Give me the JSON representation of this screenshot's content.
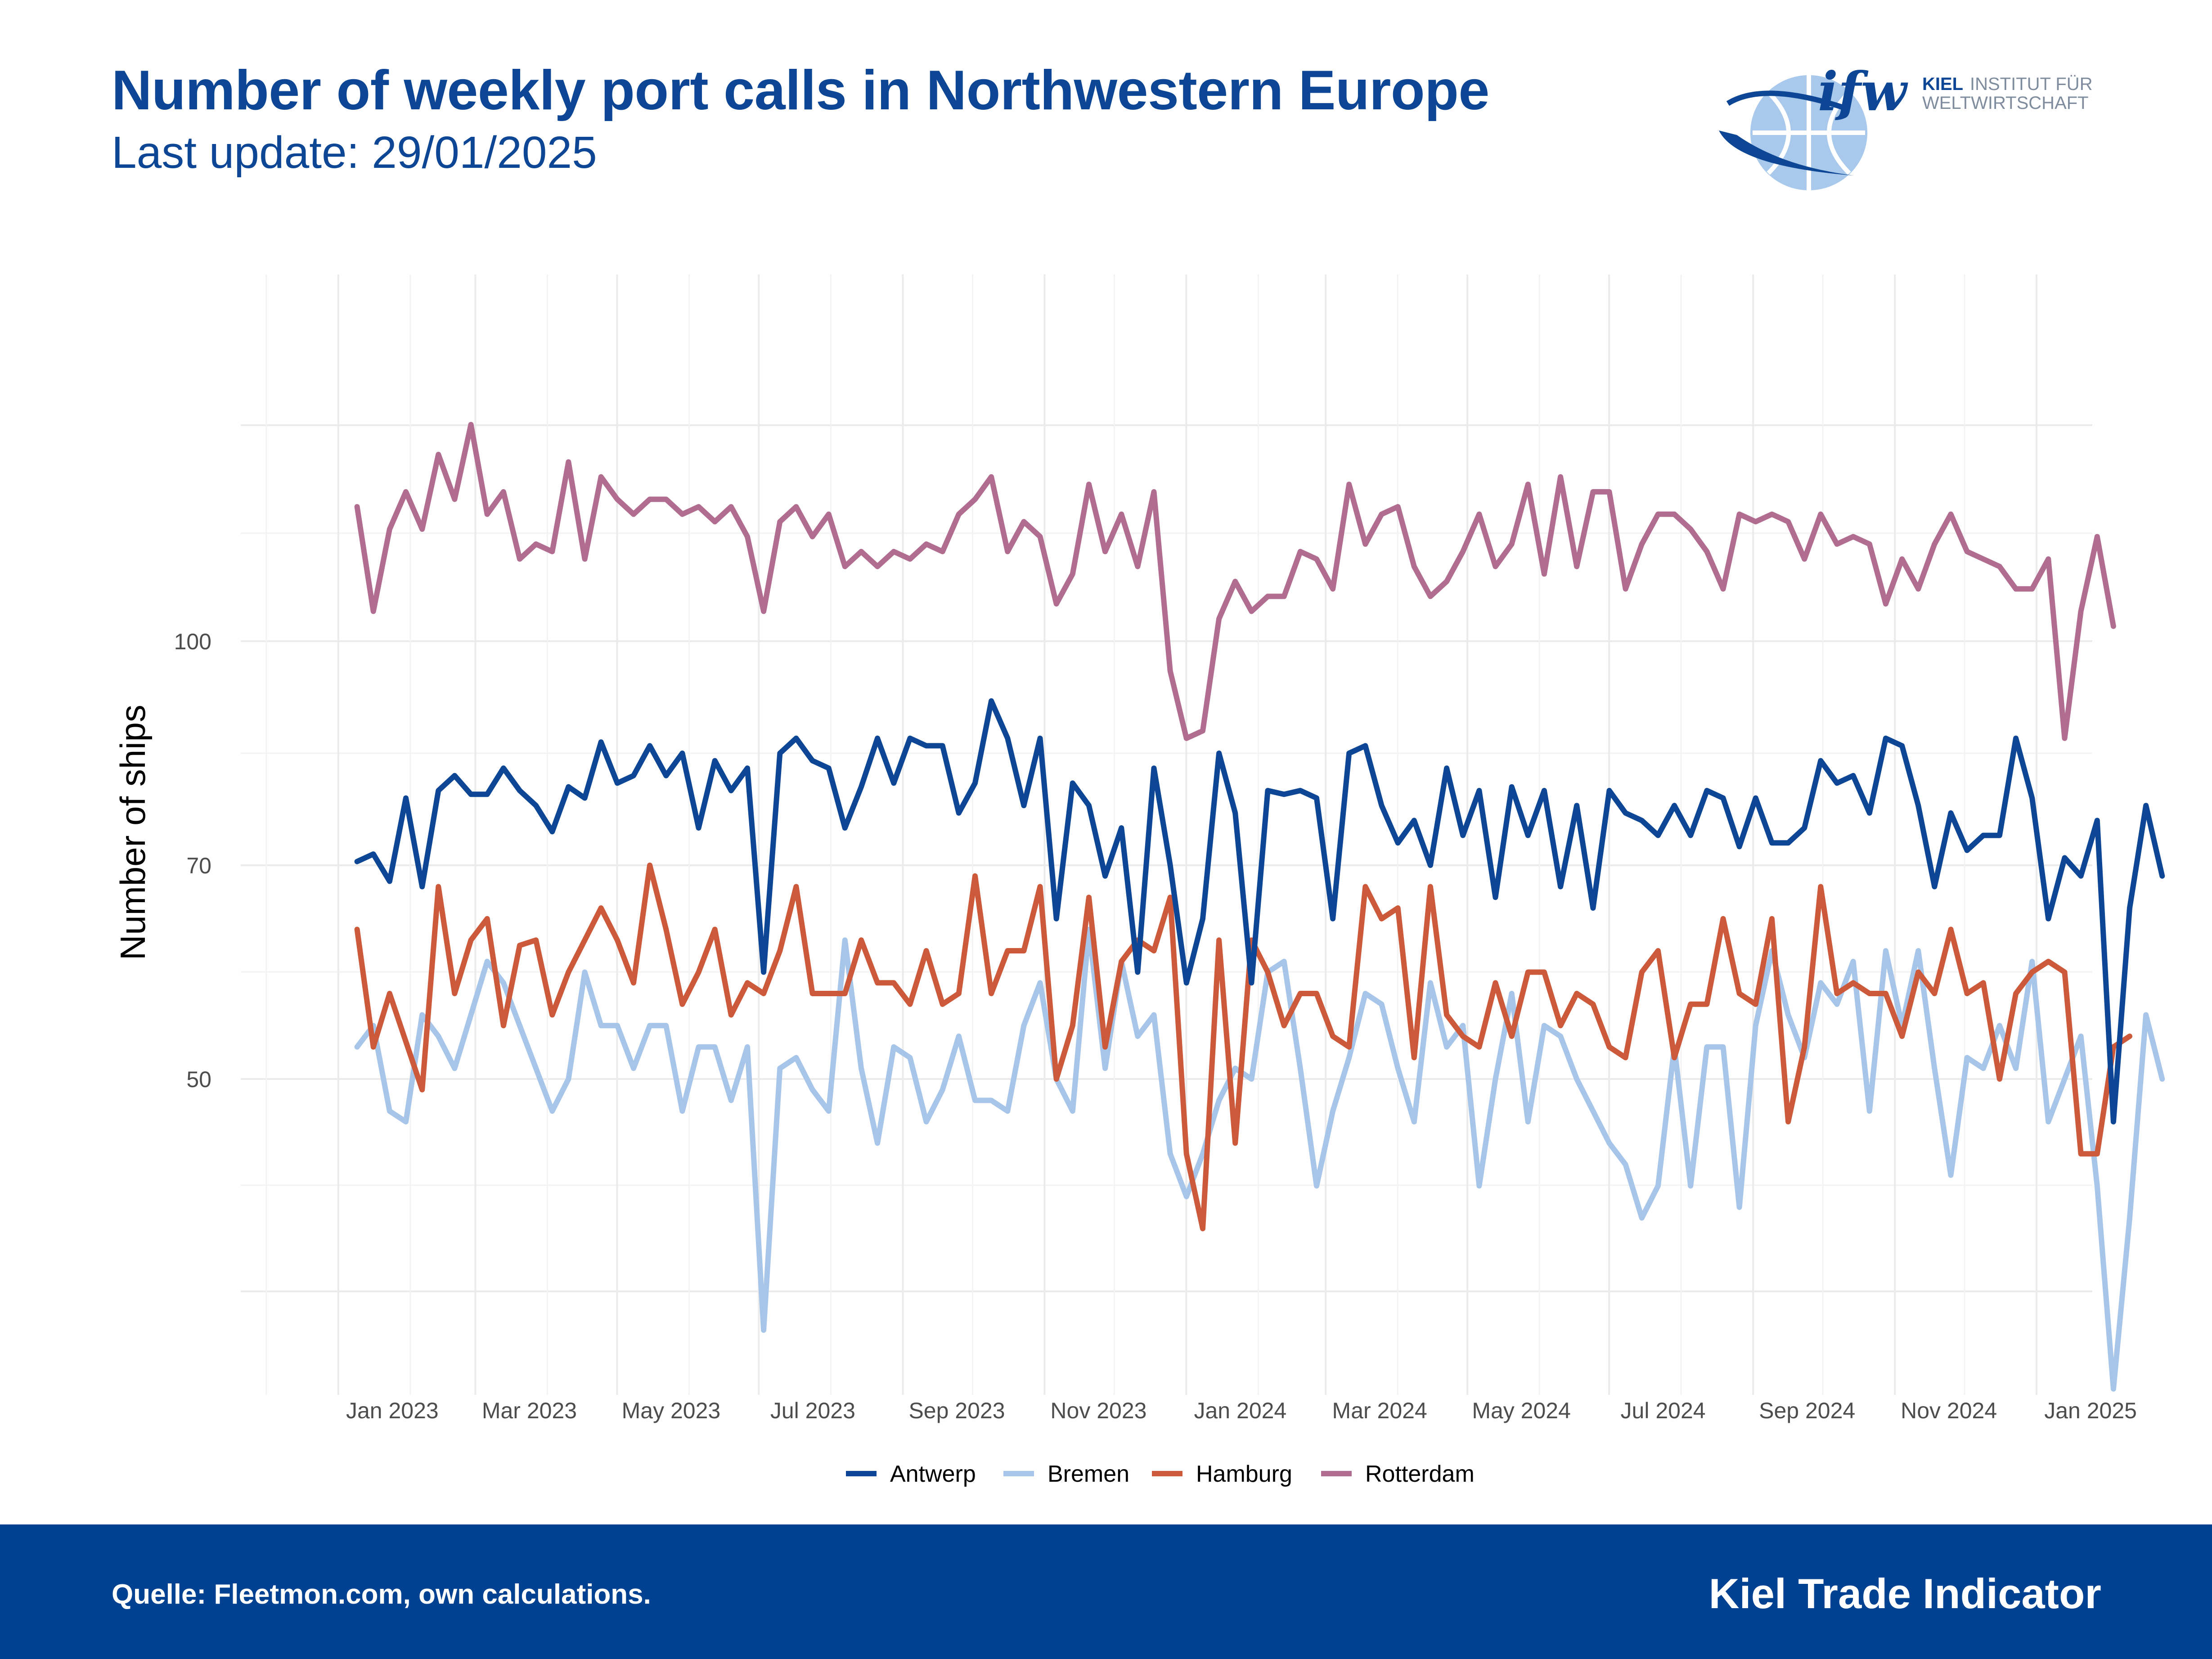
{
  "header": {
    "title": "Number of weekly port calls in Northwestern Europe",
    "subtitle": "Last update: 29/01/2025"
  },
  "logo": {
    "mark": "ifw",
    "line1_bold": "KIEL",
    "line1_rest": "INSTITUT FÜR",
    "line2": "WELTWIRTSCHAFT"
  },
  "footer": {
    "source": "Quelle: Fleetmon.com, own calculations.",
    "brand": "Kiel Trade Indicator",
    "background": "#004191"
  },
  "chart_data": {
    "type": "line",
    "ylabel": "Number of ships",
    "xlabel": "",
    "ylim": [
      16,
      122
    ],
    "x_start": "2022-12-12",
    "x_step_days": 7,
    "x_ticks": [
      "Jan 2023",
      "Mar 2023",
      "May 2023",
      "Jul 2023",
      "Sep 2023",
      "Nov 2023",
      "Jan 2024",
      "Mar 2024",
      "May 2024",
      "Jul 2024",
      "Sep 2024",
      "Nov 2024",
      "Jan 2025"
    ],
    "y_ticks": [
      50,
      70,
      100
    ],
    "grid": true,
    "legend": "bottom",
    "series": [
      {
        "name": "Antwerp",
        "color": "#0d4694",
        "values": [
          70.5,
          71.5,
          68.5,
          79,
          68,
          80,
          82,
          79.5,
          79.5,
          83,
          80,
          78,
          74.5,
          80.5,
          79,
          86.5,
          81,
          82,
          86,
          82,
          85,
          75,
          84,
          80,
          83,
          60,
          85,
          87,
          84,
          83,
          75,
          80.5,
          87,
          81,
          87,
          86,
          86,
          77,
          81,
          92,
          87,
          78,
          87,
          65,
          81,
          78,
          69,
          75,
          60,
          83,
          70,
          59,
          65,
          85,
          77,
          59,
          80,
          79.5,
          80,
          79,
          65,
          85,
          86,
          78,
          73,
          76,
          70,
          83,
          74,
          80,
          67,
          80.5,
          74,
          80,
          68,
          78,
          66,
          80,
          77,
          76,
          74,
          78,
          74,
          80,
          79,
          72.5,
          79,
          73,
          73,
          75,
          84,
          81,
          82,
          77,
          87,
          86,
          78,
          68,
          77,
          72,
          74,
          74,
          87,
          79,
          65,
          71,
          69,
          76,
          46,
          66,
          78,
          69
        ]
      },
      {
        "name": "Bremen",
        "color": "#a6c5e8",
        "values": [
          53,
          55,
          47,
          46,
          56,
          54,
          51,
          56,
          61,
          59,
          55,
          51,
          47,
          50,
          60,
          55,
          55,
          51,
          55,
          55,
          47,
          53,
          53,
          48,
          53,
          26.5,
          51,
          52,
          49,
          47,
          63,
          51,
          44,
          53,
          52,
          46,
          49,
          54,
          48,
          48,
          47,
          55,
          59,
          50,
          47,
          64,
          51,
          61,
          54,
          56,
          43,
          39,
          43,
          48,
          51,
          50,
          60,
          61,
          51,
          40,
          47,
          52,
          58,
          57,
          51,
          46,
          59,
          53,
          55,
          40,
          50,
          58,
          46,
          55,
          54,
          50,
          47,
          44,
          42,
          37,
          40,
          53,
          40,
          53,
          53,
          38,
          55,
          62,
          56,
          52,
          59,
          57,
          61,
          47,
          62,
          55,
          62,
          51,
          41,
          52,
          51,
          55,
          51,
          61,
          46,
          50,
          54,
          40,
          21,
          37,
          56,
          50
        ]
      },
      {
        "name": "Hamburg",
        "color": "#cc5a3a",
        "values": [
          64,
          53,
          58,
          53.5,
          49,
          68,
          58,
          63,
          65,
          55,
          62.5,
          63,
          56,
          60,
          63,
          66,
          63,
          59,
          70,
          64,
          57,
          60,
          64,
          56,
          59,
          58,
          62,
          68,
          58,
          58,
          58,
          63,
          59,
          59,
          57,
          62,
          57,
          58,
          69,
          58,
          62,
          62,
          68,
          50,
          55,
          67,
          53,
          61,
          63,
          62,
          67,
          43,
          36,
          63,
          44,
          63,
          60,
          55,
          58,
          58,
          54,
          53,
          68,
          65,
          66,
          52,
          68,
          56,
          54,
          53,
          59,
          54,
          60,
          60,
          55,
          58,
          57,
          53,
          52,
          60,
          62,
          52,
          57,
          57,
          65,
          58,
          57,
          65,
          46,
          53,
          68,
          58,
          59,
          58,
          58,
          54,
          60,
          58,
          64,
          58,
          59,
          50,
          58,
          60,
          61,
          60,
          43,
          43,
          53,
          54
        ]
      },
      {
        "name": "Rotterdam",
        "color": "#b06d90",
        "values": [
          118,
          104,
          115,
          120,
          115,
          125,
          119,
          129,
          117,
          120,
          111,
          113,
          112,
          124,
          111,
          122,
          119,
          117,
          119,
          119,
          117,
          118,
          116,
          118,
          114,
          104,
          116,
          118,
          114,
          117,
          110,
          112,
          110,
          112,
          111,
          113,
          112,
          117,
          119,
          122,
          112,
          116,
          114,
          105,
          109,
          121,
          112,
          117,
          110,
          120,
          96,
          87,
          88,
          103,
          108,
          104,
          106,
          106,
          112,
          111,
          107,
          121,
          113,
          117,
          118,
          110,
          106,
          108,
          112,
          117,
          110,
          113,
          121,
          109,
          122,
          110,
          120,
          120,
          107,
          113,
          117,
          117,
          115,
          112,
          107,
          117,
          116,
          117,
          116,
          111,
          117,
          113,
          114,
          113,
          105,
          111,
          107,
          113,
          117,
          112,
          111,
          110,
          107,
          107,
          111,
          87,
          104,
          114,
          102
        ]
      }
    ]
  }
}
